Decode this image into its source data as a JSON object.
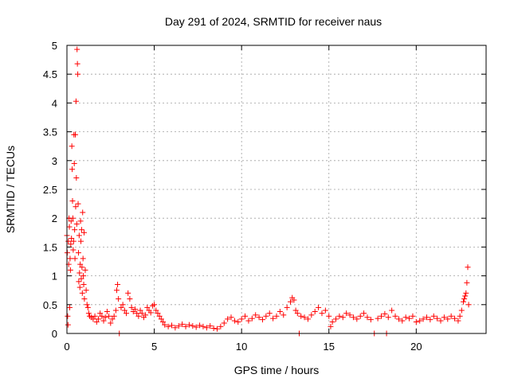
{
  "chart_data": {
    "type": "scatter",
    "title": "Day 291 of 2024, SRMTID for receiver naus",
    "xlabel": "GPS time / hours",
    "ylabel": "SRMTID / TECUs",
    "xlim": [
      0,
      24
    ],
    "ylim": [
      0,
      5
    ],
    "xticks": [
      "0",
      "5",
      "10",
      "15",
      "20"
    ],
    "yticks": [
      "0",
      "0.5",
      "1",
      "1.5",
      "2",
      "2.5",
      "3",
      "3.5",
      "4",
      "4.5",
      "5"
    ],
    "grid": true,
    "marker": "plus",
    "color": "#ff0000",
    "x_data_range": [
      0,
      23
    ],
    "series": [
      {
        "points": [
          [
            0.0,
            1.7
          ],
          [
            0.02,
            1.4
          ],
          [
            0.04,
            0.3
          ],
          [
            0.06,
            0.15
          ],
          [
            0.08,
            1.6
          ],
          [
            0.1,
            1.2
          ],
          [
            0.12,
            2.0
          ],
          [
            0.14,
            1.85
          ],
          [
            0.16,
            0.45
          ],
          [
            0.18,
            1.3
          ],
          [
            0.2,
            1.1
          ],
          [
            0.22,
            1.55
          ],
          [
            0.24,
            1.95
          ],
          [
            0.26,
            1.65
          ],
          [
            0.28,
            3.25
          ],
          [
            0.3,
            2.85
          ],
          [
            0.32,
            2.3
          ],
          [
            0.34,
            2.0
          ],
          [
            0.36,
            1.45
          ],
          [
            0.38,
            1.6
          ],
          [
            0.4,
            3.45
          ],
          [
            0.42,
            2.95
          ],
          [
            0.44,
            1.8
          ],
          [
            0.46,
            1.3
          ],
          [
            0.48,
            3.45
          ],
          [
            0.5,
            2.2
          ],
          [
            0.52,
            4.03
          ],
          [
            0.54,
            2.7
          ],
          [
            0.56,
            1.9
          ],
          [
            0.58,
            4.93
          ],
          [
            0.6,
            4.68
          ],
          [
            0.62,
            4.5
          ],
          [
            0.64,
            2.25
          ],
          [
            0.66,
            1.4
          ],
          [
            0.68,
            0.9
          ],
          [
            0.7,
            1.7
          ],
          [
            0.72,
            1.05
          ],
          [
            0.74,
            0.8
          ],
          [
            0.76,
            1.2
          ],
          [
            0.78,
            1.95
          ],
          [
            0.8,
            1.6
          ],
          [
            0.82,
            0.95
          ],
          [
            0.84,
            1.8
          ],
          [
            0.86,
            1.15
          ],
          [
            0.88,
            0.7
          ],
          [
            0.9,
            2.1
          ],
          [
            0.92,
            1.3
          ],
          [
            0.94,
            1.0
          ],
          [
            0.96,
            0.85
          ],
          [
            0.98,
            1.75
          ],
          [
            1.0,
            0.6
          ],
          [
            1.05,
            1.1
          ],
          [
            1.1,
            0.75
          ],
          [
            1.15,
            0.5
          ],
          [
            1.2,
            0.45
          ],
          [
            1.25,
            0.35
          ],
          [
            1.3,
            0.3
          ],
          [
            1.4,
            0.28
          ],
          [
            1.5,
            0.25
          ],
          [
            1.6,
            0.3
          ],
          [
            1.7,
            0.2
          ],
          [
            1.8,
            0.25
          ],
          [
            1.9,
            0.35
          ],
          [
            2.0,
            0.3
          ],
          [
            2.1,
            0.22
          ],
          [
            2.2,
            0.28
          ],
          [
            2.3,
            0.38
          ],
          [
            2.4,
            0.3
          ],
          [
            2.5,
            0.18
          ],
          [
            2.6,
            0.25
          ],
          [
            2.7,
            0.3
          ],
          [
            2.8,
            0.4
          ],
          [
            2.85,
            0.75
          ],
          [
            2.9,
            0.85
          ],
          [
            2.95,
            0.6
          ],
          [
            3.0,
            0.0
          ],
          [
            3.1,
            0.45
          ],
          [
            3.2,
            0.5
          ],
          [
            3.3,
            0.4
          ],
          [
            3.4,
            0.35
          ],
          [
            3.5,
            0.7
          ],
          [
            3.6,
            0.6
          ],
          [
            3.7,
            0.45
          ],
          [
            3.8,
            0.38
          ],
          [
            3.9,
            0.42
          ],
          [
            4.0,
            0.35
          ],
          [
            4.1,
            0.3
          ],
          [
            4.2,
            0.4
          ],
          [
            4.3,
            0.35
          ],
          [
            4.4,
            0.28
          ],
          [
            4.5,
            0.32
          ],
          [
            4.6,
            0.45
          ],
          [
            4.7,
            0.4
          ],
          [
            4.8,
            0.36
          ],
          [
            4.9,
            0.48
          ],
          [
            5.0,
            0.5
          ],
          [
            5.1,
            0.4
          ],
          [
            5.2,
            0.35
          ],
          [
            5.3,
            0.3
          ],
          [
            5.4,
            0.25
          ],
          [
            5.5,
            0.2
          ],
          [
            5.6,
            0.15
          ],
          [
            5.8,
            0.12
          ],
          [
            6.0,
            0.14
          ],
          [
            6.2,
            0.1
          ],
          [
            6.4,
            0.13
          ],
          [
            6.6,
            0.16
          ],
          [
            6.8,
            0.12
          ],
          [
            7.0,
            0.15
          ],
          [
            7.2,
            0.13
          ],
          [
            7.4,
            0.11
          ],
          [
            7.6,
            0.14
          ],
          [
            7.8,
            0.12
          ],
          [
            8.0,
            0.1
          ],
          [
            8.2,
            0.13
          ],
          [
            8.4,
            0.09
          ],
          [
            8.6,
            0.08
          ],
          [
            8.8,
            0.12
          ],
          [
            9.0,
            0.18
          ],
          [
            9.2,
            0.25
          ],
          [
            9.4,
            0.28
          ],
          [
            9.6,
            0.22
          ],
          [
            9.8,
            0.2
          ],
          [
            10.0,
            0.25
          ],
          [
            10.2,
            0.3
          ],
          [
            10.4,
            0.22
          ],
          [
            10.6,
            0.26
          ],
          [
            10.8,
            0.32
          ],
          [
            11.0,
            0.28
          ],
          [
            11.2,
            0.24
          ],
          [
            11.4,
            0.3
          ],
          [
            11.6,
            0.35
          ],
          [
            11.8,
            0.26
          ],
          [
            12.0,
            0.3
          ],
          [
            12.2,
            0.38
          ],
          [
            12.4,
            0.32
          ],
          [
            12.6,
            0.45
          ],
          [
            12.8,
            0.55
          ],
          [
            12.9,
            0.62
          ],
          [
            13.0,
            0.58
          ],
          [
            13.1,
            0.4
          ],
          [
            13.2,
            0.35
          ],
          [
            13.3,
            0.0
          ],
          [
            13.4,
            0.3
          ],
          [
            13.6,
            0.28
          ],
          [
            13.8,
            0.25
          ],
          [
            14.0,
            0.32
          ],
          [
            14.2,
            0.38
          ],
          [
            14.4,
            0.45
          ],
          [
            14.6,
            0.35
          ],
          [
            14.8,
            0.4
          ],
          [
            15.0,
            0.3
          ],
          [
            15.1,
            0.12
          ],
          [
            15.2,
            0.2
          ],
          [
            15.4,
            0.25
          ],
          [
            15.6,
            0.3
          ],
          [
            15.8,
            0.28
          ],
          [
            16.0,
            0.35
          ],
          [
            16.2,
            0.32
          ],
          [
            16.4,
            0.28
          ],
          [
            16.6,
            0.25
          ],
          [
            16.8,
            0.3
          ],
          [
            17.0,
            0.35
          ],
          [
            17.2,
            0.28
          ],
          [
            17.4,
            0.24
          ],
          [
            17.6,
            0.0
          ],
          [
            17.8,
            0.26
          ],
          [
            18.0,
            0.3
          ],
          [
            18.2,
            0.34
          ],
          [
            18.3,
            0.0
          ],
          [
            18.4,
            0.28
          ],
          [
            18.6,
            0.4
          ],
          [
            18.8,
            0.3
          ],
          [
            19.0,
            0.25
          ],
          [
            19.2,
            0.22
          ],
          [
            19.4,
            0.28
          ],
          [
            19.6,
            0.26
          ],
          [
            19.8,
            0.3
          ],
          [
            20.0,
            0.2
          ],
          [
            20.2,
            0.22
          ],
          [
            20.4,
            0.25
          ],
          [
            20.6,
            0.28
          ],
          [
            20.8,
            0.24
          ],
          [
            21.0,
            0.3
          ],
          [
            21.2,
            0.26
          ],
          [
            21.4,
            0.22
          ],
          [
            21.6,
            0.28
          ],
          [
            21.8,
            0.25
          ],
          [
            22.0,
            0.3
          ],
          [
            22.2,
            0.26
          ],
          [
            22.4,
            0.22
          ],
          [
            22.5,
            0.3
          ],
          [
            22.6,
            0.4
          ],
          [
            22.7,
            0.55
          ],
          [
            22.75,
            0.6
          ],
          [
            22.8,
            0.65
          ],
          [
            22.85,
            0.7
          ],
          [
            22.9,
            0.88
          ],
          [
            22.95,
            1.15
          ],
          [
            23.0,
            0.5
          ]
        ]
      }
    ]
  }
}
